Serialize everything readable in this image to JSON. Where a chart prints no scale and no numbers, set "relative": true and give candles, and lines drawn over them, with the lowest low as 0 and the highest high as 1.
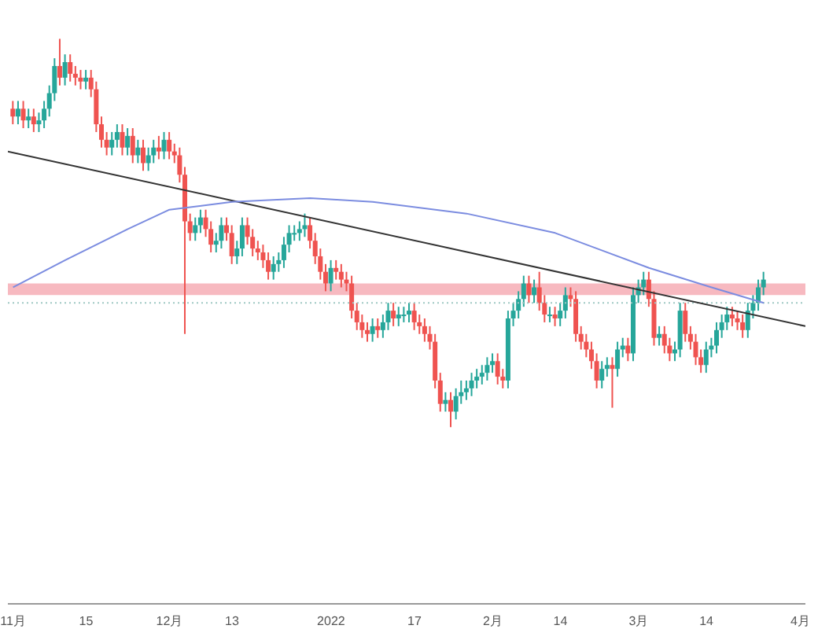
{
  "chart_data": {
    "type": "candlestick",
    "relative": true,
    "colors": [
      "#ef5350",
      "#26a69a",
      "#ef5350",
      "#26a69a",
      "#ef5350",
      "#26a69a",
      "#26a69a",
      "#26a69a",
      "#26a69a",
      "#ef5350",
      "#26a69a",
      "#ef5350",
      "#ef5350",
      "#ef5350",
      "#26a69a",
      "#ef5350",
      "#ef5350",
      "#ef5350",
      "#ef5350",
      "#26a69a",
      "#26a69a",
      "#ef5350",
      "#26a69a",
      "#ef5350",
      "#26a69a",
      "#ef5350",
      "#26a69a",
      "#26a69a",
      "#ef5350",
      "#26a69a",
      "#ef5350",
      "#ef5350",
      "#ef5350",
      "#ef5350",
      "#ef5350",
      "#26a69a",
      "#26a69a",
      "#ef5350",
      "#ef5350",
      "#26a69a",
      "#26a69a",
      "#ef5350",
      "#ef5350",
      "#26a69a",
      "#26a69a",
      "#ef5350",
      "#ef5350",
      "#ef5350",
      "#ef5350",
      "#ef5350",
      "#26a69a",
      "#26a69a",
      "#26a69a",
      "#26a69a",
      "#26a69a",
      "#26a69a",
      "#26a69a",
      "#ef5350",
      "#ef5350",
      "#ef5350",
      "#ef5350",
      "#26a69a",
      "#ef5350",
      "#ef5350",
      "#ef5350",
      "#ef5350",
      "#ef5350",
      "#ef5350",
      "#ef5350",
      "#26a69a",
      "#ef5350",
      "#26a69a",
      "#26a69a",
      "#ef5350",
      "#26a69a",
      "#26a69a",
      "#26a69a",
      "#ef5350",
      "#ef5350",
      "#ef5350",
      "#ef5350",
      "#ef5350",
      "#ef5350",
      "#26a69a",
      "#ef5350",
      "#26a69a",
      "#26a69a",
      "#26a69a",
      "#26a69a",
      "#26a69a",
      "#26a69a",
      "#26a69a",
      "#26a69a",
      "#ef5350",
      "#ef5350",
      "#26a69a",
      "#26a69a",
      "#26a69a",
      "#26a69a",
      "#ef5350",
      "#26a69a",
      "#ef5350",
      "#ef5350",
      "#26a69a",
      "#ef5350",
      "#26a69a",
      "#26a69a",
      "#ef5350",
      "#ef5350",
      "#ef5350",
      "#ef5350",
      "#ef5350",
      "#ef5350",
      "#26a69a",
      "#26a69a",
      "#ef5350",
      "#26a69a",
      "#26a69a",
      "#ef5350",
      "#26a69a",
      "#26a69a",
      "#26a69a",
      "#ef5350",
      "#ef5350",
      "#26a69a",
      "#ef5350",
      "#ef5350",
      "#26a69a",
      "#26a69a",
      "#ef5350",
      "#ef5350",
      "#ef5350",
      "#ef5350",
      "#26a69a",
      "#26a69a",
      "#26a69a",
      "#26a69a",
      "#26a69a",
      "#ef5350",
      "#ef5350",
      "#ef5350",
      "#26a69a",
      "#26a69a",
      "#26a69a",
      "#26a69a"
    ],
    "x": [
      "2021-11-01",
      "2021-11-02",
      "2021-11-03",
      "2021-11-04",
      "2021-11-05",
      "2021-11-06",
      "2021-11-07",
      "2021-11-08",
      "2021-11-09",
      "2021-11-10",
      "2021-11-11",
      "2021-11-12",
      "2021-11-13",
      "2021-11-14",
      "2021-11-15",
      "2021-11-16",
      "2021-11-17",
      "2021-11-18",
      "2021-11-19",
      "2021-11-20",
      "2021-11-21",
      "2021-11-22",
      "2021-11-23",
      "2021-11-24",
      "2021-11-25",
      "2021-11-26",
      "2021-11-27",
      "2021-11-28",
      "2021-11-29",
      "2021-11-30",
      "2021-12-01",
      "2021-12-02",
      "2021-12-03",
      "2021-12-04",
      "2021-12-05",
      "2021-12-06",
      "2021-12-07",
      "2021-12-08",
      "2021-12-09",
      "2021-12-10",
      "2021-12-11",
      "2021-12-12",
      "2021-12-13",
      "2021-12-14",
      "2021-12-15",
      "2021-12-16",
      "2021-12-17",
      "2021-12-18",
      "2021-12-19",
      "2021-12-20",
      "2021-12-21",
      "2021-12-22",
      "2021-12-23",
      "2021-12-24",
      "2021-12-25",
      "2021-12-26",
      "2021-12-27",
      "2021-12-28",
      "2021-12-29",
      "2021-12-30",
      "2021-12-31",
      "2022-01-01",
      "2022-01-02",
      "2022-01-03",
      "2022-01-04",
      "2022-01-05",
      "2022-01-06",
      "2022-01-07",
      "2022-01-08",
      "2022-01-09",
      "2022-01-10",
      "2022-01-11",
      "2022-01-12",
      "2022-01-13",
      "2022-01-14",
      "2022-01-15",
      "2022-01-16",
      "2022-01-17",
      "2022-01-18",
      "2022-01-19",
      "2022-01-20",
      "2022-01-21",
      "2022-01-22",
      "2022-01-23",
      "2022-01-24",
      "2022-01-25",
      "2022-01-26",
      "2022-01-27",
      "2022-01-28",
      "2022-01-29",
      "2022-01-30",
      "2022-01-31",
      "2022-02-01",
      "2022-02-02",
      "2022-02-03",
      "2022-02-04",
      "2022-02-05",
      "2022-02-06",
      "2022-02-07",
      "2022-02-08",
      "2022-02-09",
      "2022-02-10",
      "2022-02-11",
      "2022-02-12",
      "2022-02-13",
      "2022-02-14",
      "2022-02-15",
      "2022-02-16",
      "2022-02-17",
      "2022-02-18",
      "2022-02-19",
      "2022-02-20",
      "2022-02-21",
      "2022-02-22",
      "2022-02-23",
      "2022-02-24",
      "2022-02-25",
      "2022-02-26",
      "2022-02-27",
      "2022-02-28",
      "2022-03-01",
      "2022-03-02",
      "2022-03-03",
      "2022-03-04",
      "2022-03-05",
      "2022-03-06",
      "2022-03-07",
      "2022-03-08",
      "2022-03-09",
      "2022-03-10",
      "2022-03-11",
      "2022-03-12",
      "2022-03-13",
      "2022-03-14",
      "2022-03-15",
      "2022-03-16",
      "2022-03-17",
      "2022-03-18",
      "2022-03-19",
      "2022-03-20",
      "2022-03-21",
      "2022-03-22",
      "2022-03-23",
      "2022-03-24",
      "2022-03-25"
    ],
    "ohlc": [
      [
        0.82,
        0.84,
        0.78,
        0.8
      ],
      [
        0.8,
        0.84,
        0.78,
        0.82
      ],
      [
        0.82,
        0.84,
        0.77,
        0.79
      ],
      [
        0.79,
        0.82,
        0.77,
        0.8
      ],
      [
        0.8,
        0.82,
        0.76,
        0.78
      ],
      [
        0.78,
        0.81,
        0.76,
        0.79
      ],
      [
        0.79,
        0.84,
        0.77,
        0.82
      ],
      [
        0.82,
        0.88,
        0.8,
        0.86
      ],
      [
        0.86,
        0.95,
        0.84,
        0.93
      ],
      [
        0.93,
        1.0,
        0.88,
        0.9
      ],
      [
        0.9,
        0.96,
        0.88,
        0.94
      ],
      [
        0.94,
        0.96,
        0.89,
        0.91
      ],
      [
        0.91,
        0.93,
        0.88,
        0.9
      ],
      [
        0.9,
        0.92,
        0.87,
        0.89
      ],
      [
        0.89,
        0.92,
        0.87,
        0.9
      ],
      [
        0.9,
        0.92,
        0.85,
        0.87
      ],
      [
        0.87,
        0.89,
        0.76,
        0.78
      ],
      [
        0.78,
        0.8,
        0.72,
        0.74
      ],
      [
        0.74,
        0.76,
        0.7,
        0.72
      ],
      [
        0.72,
        0.76,
        0.7,
        0.74
      ],
      [
        0.74,
        0.78,
        0.72,
        0.76
      ],
      [
        0.76,
        0.78,
        0.7,
        0.72
      ],
      [
        0.72,
        0.77,
        0.7,
        0.75
      ],
      [
        0.75,
        0.77,
        0.68,
        0.7
      ],
      [
        0.7,
        0.74,
        0.68,
        0.72
      ],
      [
        0.72,
        0.74,
        0.66,
        0.68
      ],
      [
        0.68,
        0.72,
        0.66,
        0.7
      ],
      [
        0.7,
        0.74,
        0.68,
        0.72
      ],
      [
        0.72,
        0.75,
        0.69,
        0.71
      ],
      [
        0.71,
        0.76,
        0.69,
        0.74
      ],
      [
        0.74,
        0.76,
        0.69,
        0.71
      ],
      [
        0.71,
        0.73,
        0.68,
        0.7
      ],
      [
        0.7,
        0.72,
        0.63,
        0.65
      ],
      [
        0.65,
        0.67,
        0.24,
        0.53
      ],
      [
        0.53,
        0.55,
        0.48,
        0.5
      ],
      [
        0.5,
        0.54,
        0.48,
        0.52
      ],
      [
        0.52,
        0.56,
        0.5,
        0.54
      ],
      [
        0.54,
        0.56,
        0.49,
        0.51
      ],
      [
        0.51,
        0.53,
        0.45,
        0.47
      ],
      [
        0.47,
        0.5,
        0.45,
        0.48
      ],
      [
        0.48,
        0.54,
        0.46,
        0.52
      ],
      [
        0.52,
        0.54,
        0.48,
        0.5
      ],
      [
        0.5,
        0.52,
        0.42,
        0.44
      ],
      [
        0.44,
        0.48,
        0.42,
        0.46
      ],
      [
        0.46,
        0.54,
        0.44,
        0.52
      ],
      [
        0.52,
        0.54,
        0.47,
        0.49
      ],
      [
        0.49,
        0.51,
        0.44,
        0.46
      ],
      [
        0.46,
        0.48,
        0.43,
        0.45
      ],
      [
        0.45,
        0.47,
        0.41,
        0.43
      ],
      [
        0.43,
        0.45,
        0.38,
        0.4
      ],
      [
        0.4,
        0.44,
        0.38,
        0.42
      ],
      [
        0.42,
        0.45,
        0.4,
        0.43
      ],
      [
        0.43,
        0.49,
        0.41,
        0.47
      ],
      [
        0.47,
        0.52,
        0.45,
        0.5
      ],
      [
        0.5,
        0.52,
        0.48,
        0.5
      ],
      [
        0.5,
        0.53,
        0.48,
        0.51
      ],
      [
        0.51,
        0.55,
        0.49,
        0.52
      ],
      [
        0.52,
        0.54,
        0.46,
        0.48
      ],
      [
        0.48,
        0.5,
        0.42,
        0.44
      ],
      [
        0.44,
        0.46,
        0.38,
        0.4
      ],
      [
        0.4,
        0.42,
        0.35,
        0.37
      ],
      [
        0.37,
        0.43,
        0.35,
        0.41
      ],
      [
        0.41,
        0.43,
        0.38,
        0.4
      ],
      [
        0.4,
        0.42,
        0.36,
        0.38
      ],
      [
        0.38,
        0.4,
        0.35,
        0.37
      ],
      [
        0.37,
        0.39,
        0.28,
        0.3
      ],
      [
        0.3,
        0.32,
        0.25,
        0.27
      ],
      [
        0.27,
        0.29,
        0.23,
        0.25
      ],
      [
        0.25,
        0.27,
        0.22,
        0.24
      ],
      [
        0.24,
        0.28,
        0.22,
        0.26
      ],
      [
        0.26,
        0.28,
        0.23,
        0.25
      ],
      [
        0.25,
        0.29,
        0.23,
        0.27
      ],
      [
        0.27,
        0.32,
        0.25,
        0.3
      ],
      [
        0.3,
        0.32,
        0.26,
        0.28
      ],
      [
        0.28,
        0.31,
        0.26,
        0.29
      ],
      [
        0.29,
        0.31,
        0.27,
        0.29
      ],
      [
        0.29,
        0.32,
        0.27,
        0.3
      ],
      [
        0.3,
        0.32,
        0.25,
        0.27
      ],
      [
        0.27,
        0.29,
        0.24,
        0.26
      ],
      [
        0.26,
        0.28,
        0.22,
        0.24
      ],
      [
        0.24,
        0.26,
        0.2,
        0.22
      ],
      [
        0.22,
        0.24,
        0.1,
        0.12
      ],
      [
        0.12,
        0.14,
        0.04,
        0.06
      ],
      [
        0.06,
        0.09,
        0.04,
        0.07
      ],
      [
        0.07,
        0.09,
        0.0,
        0.04
      ],
      [
        0.04,
        0.1,
        0.02,
        0.08
      ],
      [
        0.08,
        0.12,
        0.06,
        0.09
      ],
      [
        0.09,
        0.12,
        0.07,
        0.1
      ],
      [
        0.1,
        0.14,
        0.08,
        0.12
      ],
      [
        0.12,
        0.15,
        0.1,
        0.13
      ],
      [
        0.13,
        0.16,
        0.11,
        0.14
      ],
      [
        0.14,
        0.18,
        0.12,
        0.16
      ],
      [
        0.16,
        0.19,
        0.14,
        0.17
      ],
      [
        0.17,
        0.19,
        0.11,
        0.13
      ],
      [
        0.13,
        0.15,
        0.1,
        0.12
      ],
      [
        0.12,
        0.3,
        0.1,
        0.28
      ],
      [
        0.28,
        0.32,
        0.26,
        0.3
      ],
      [
        0.3,
        0.35,
        0.28,
        0.33
      ],
      [
        0.33,
        0.39,
        0.31,
        0.37
      ],
      [
        0.37,
        0.39,
        0.32,
        0.34
      ],
      [
        0.34,
        0.38,
        0.32,
        0.36
      ],
      [
        0.36,
        0.4,
        0.3,
        0.32
      ],
      [
        0.32,
        0.34,
        0.27,
        0.29
      ],
      [
        0.29,
        0.31,
        0.27,
        0.29
      ],
      [
        0.29,
        0.31,
        0.26,
        0.28
      ],
      [
        0.28,
        0.32,
        0.26,
        0.3
      ],
      [
        0.3,
        0.36,
        0.28,
        0.34
      ],
      [
        0.34,
        0.36,
        0.31,
        0.33
      ],
      [
        0.33,
        0.35,
        0.22,
        0.24
      ],
      [
        0.24,
        0.26,
        0.2,
        0.22
      ],
      [
        0.22,
        0.24,
        0.18,
        0.2
      ],
      [
        0.2,
        0.22,
        0.15,
        0.17
      ],
      [
        0.17,
        0.19,
        0.1,
        0.12
      ],
      [
        0.12,
        0.17,
        0.1,
        0.15
      ],
      [
        0.15,
        0.18,
        0.13,
        0.16
      ],
      [
        0.16,
        0.18,
        0.05,
        0.15
      ],
      [
        0.15,
        0.22,
        0.13,
        0.2
      ],
      [
        0.2,
        0.23,
        0.18,
        0.21
      ],
      [
        0.21,
        0.23,
        0.17,
        0.19
      ],
      [
        0.19,
        0.36,
        0.17,
        0.34
      ],
      [
        0.34,
        0.38,
        0.32,
        0.36
      ],
      [
        0.36,
        0.4,
        0.34,
        0.38
      ],
      [
        0.38,
        0.4,
        0.31,
        0.33
      ],
      [
        0.33,
        0.35,
        0.21,
        0.23
      ],
      [
        0.23,
        0.26,
        0.21,
        0.24
      ],
      [
        0.24,
        0.26,
        0.19,
        0.21
      ],
      [
        0.21,
        0.23,
        0.17,
        0.19
      ],
      [
        0.19,
        0.22,
        0.17,
        0.2
      ],
      [
        0.2,
        0.32,
        0.18,
        0.3
      ],
      [
        0.3,
        0.32,
        0.22,
        0.24
      ],
      [
        0.24,
        0.26,
        0.2,
        0.22
      ],
      [
        0.22,
        0.24,
        0.16,
        0.18
      ],
      [
        0.18,
        0.2,
        0.14,
        0.16
      ],
      [
        0.16,
        0.22,
        0.14,
        0.2
      ],
      [
        0.2,
        0.23,
        0.18,
        0.21
      ],
      [
        0.21,
        0.27,
        0.19,
        0.25
      ],
      [
        0.25,
        0.29,
        0.23,
        0.27
      ],
      [
        0.27,
        0.31,
        0.25,
        0.29
      ],
      [
        0.29,
        0.31,
        0.26,
        0.28
      ],
      [
        0.28,
        0.3,
        0.25,
        0.27
      ],
      [
        0.27,
        0.29,
        0.23,
        0.25
      ],
      [
        0.25,
        0.32,
        0.23,
        0.3
      ],
      [
        0.3,
        0.34,
        0.28,
        0.32
      ],
      [
        0.32,
        0.38,
        0.3,
        0.36
      ],
      [
        0.36,
        0.4,
        0.34,
        0.38
      ]
    ],
    "series": [
      {
        "type": "line",
        "color": "#333333",
        "x": [
          "2021-10-31",
          "2022-04-02"
        ],
        "values": [
          0.71,
          0.26
        ]
      },
      {
        "type": "line",
        "color": "#7b8ce0",
        "x": [
          "2021-11-01",
          "2021-11-11",
          "2021-11-23",
          "2021-12-01",
          "2021-12-13",
          "2021-12-28",
          "2022-01-09",
          "2022-01-27",
          "2022-02-13",
          "2022-03-03",
          "2022-03-15",
          "2022-03-25"
        ],
        "values": [
          0.36,
          0.43,
          0.51,
          0.56,
          0.58,
          0.59,
          0.58,
          0.55,
          0.5,
          0.41,
          0.36,
          0.32
        ]
      }
    ],
    "bands": [
      {
        "axis": "y",
        "from": 0.34,
        "to": 0.37,
        "color": "#f7b9c0"
      }
    ],
    "ref_lines": [
      {
        "axis": "y",
        "value": 0.32,
        "color": "#9fc8c4",
        "line_style": "dotted"
      }
    ],
    "xlim": [
      "2021-10-31",
      "2022-04-02"
    ],
    "xticks": [
      {
        "value": "2021-11-01",
        "label": "11月"
      },
      {
        "value": "2021-11-15",
        "label": "15"
      },
      {
        "value": "2021-12-01",
        "label": "12月"
      },
      {
        "value": "2021-12-13",
        "label": "13"
      },
      {
        "value": "2022-01-01",
        "label": "2022"
      },
      {
        "value": "2022-01-17",
        "label": "17"
      },
      {
        "value": "2022-02-01",
        "label": "2月"
      },
      {
        "value": "2022-02-14",
        "label": "14"
      },
      {
        "value": "2022-03-01",
        "label": "3月"
      },
      {
        "value": "2022-03-14",
        "label": "14"
      },
      {
        "value": "2022-04-01",
        "label": "4月"
      }
    ],
    "tick_labels": "x",
    "grid": false,
    "legend": false
  }
}
